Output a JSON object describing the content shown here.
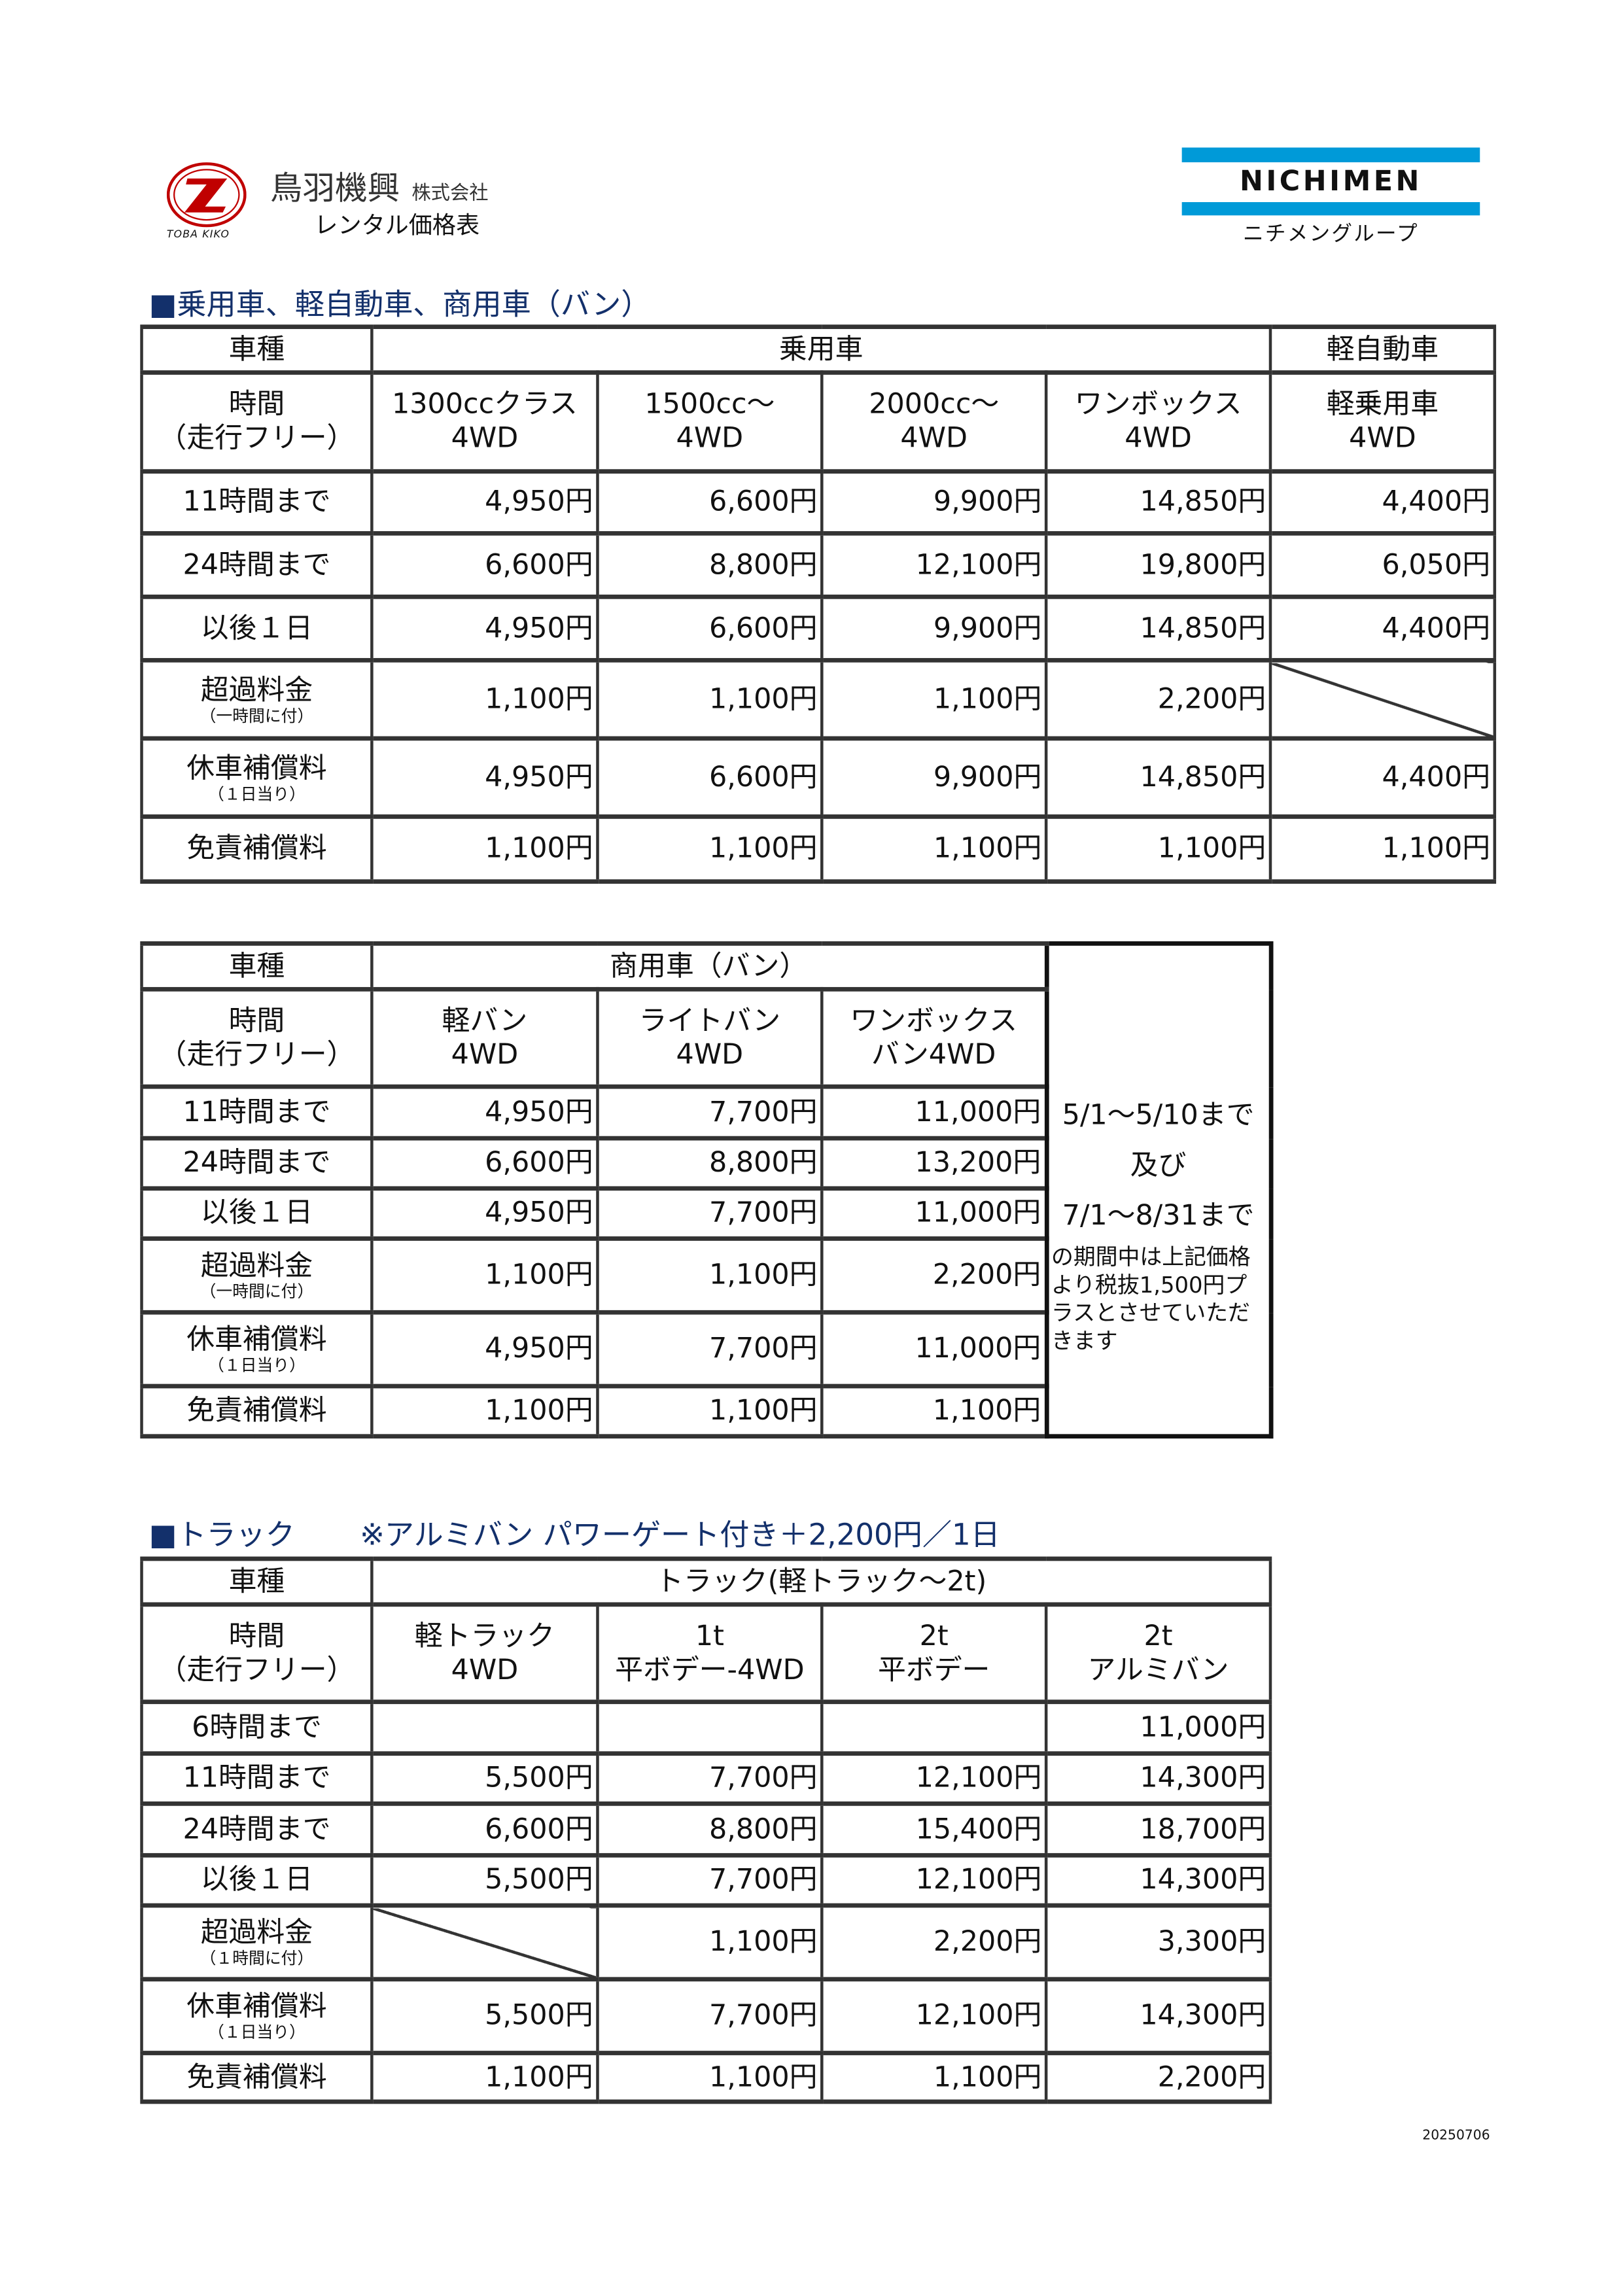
{
  "company": {
    "name": "鳥羽機興",
    "suffix": "株式会社",
    "subtitle": "レンタル価格表",
    "logo_text": "TOBA KIKO"
  },
  "partner": {
    "name": "NICHIMEN",
    "group": "ニチメングループ"
  },
  "colors": {
    "heading": "#13306b",
    "partner_blue": "#009ad8",
    "logo_red": "#c00000",
    "border": "#333333"
  },
  "sections": [
    {
      "title": "■乗用車、軽自動車、商用車（バン）"
    },
    {
      "title": "■トラック",
      "note": "※アルミバン パワーゲート付き＋2,200円／1日"
    }
  ],
  "tables": [
    {
      "group_header": [
        "車種",
        "乗用車",
        "軽自動車"
      ],
      "col_header": [
        [
          "時間",
          "（走行フリー）"
        ],
        [
          "1300ccクラス",
          "4WD"
        ],
        [
          "1500cc～",
          "4WD"
        ],
        [
          "2000cc～",
          "4WD"
        ],
        [
          "ワンボックス",
          "4WD"
        ],
        [
          "軽乗用車",
          "4WD"
        ]
      ],
      "rows": [
        {
          "label": "11時間まで",
          "values": [
            "4,950円",
            "6,600円",
            "9,900円",
            "14,850円",
            "4,400円"
          ]
        },
        {
          "label": "24時間まで",
          "values": [
            "6,600円",
            "8,800円",
            "12,100円",
            "19,800円",
            "6,050円"
          ]
        },
        {
          "label": "以後１日",
          "values": [
            "4,950円",
            "6,600円",
            "9,900円",
            "14,850円",
            "4,400円"
          ]
        },
        {
          "label": "超過料金",
          "sub": "（一時間に付）",
          "values": [
            "1,100円",
            "1,100円",
            "1,100円",
            "2,200円",
            null
          ]
        },
        {
          "label": "休車補償料",
          "sub": "（１日当り）",
          "values": [
            "4,950円",
            "6,600円",
            "9,900円",
            "14,850円",
            "4,400円"
          ]
        },
        {
          "label": "免責補償料",
          "values": [
            "1,100円",
            "1,100円",
            "1,100円",
            "1,100円",
            "1,100円"
          ]
        }
      ]
    },
    {
      "group_header": [
        "車種",
        "商用車（バン）"
      ],
      "col_header": [
        [
          "時間",
          "（走行フリー）"
        ],
        [
          "軽バン",
          "4WD"
        ],
        [
          "ライトバン",
          "4WD"
        ],
        [
          "ワンボックス",
          "バン4WD"
        ]
      ],
      "rows": [
        {
          "label": "11時間まで",
          "values": [
            "4,950円",
            "7,700円",
            "11,000円"
          ]
        },
        {
          "label": "24時間まで",
          "values": [
            "6,600円",
            "8,800円",
            "13,200円"
          ]
        },
        {
          "label": "以後１日",
          "values": [
            "4,950円",
            "7,700円",
            "11,000円"
          ]
        },
        {
          "label": "超過料金",
          "sub": "（一時間に付）",
          "values": [
            "1,100円",
            "1,100円",
            "2,200円"
          ]
        },
        {
          "label": "休車補償料",
          "sub": "（１日当り）",
          "values": [
            "4,950円",
            "7,700円",
            "11,000円"
          ]
        },
        {
          "label": "免責補償料",
          "values": [
            "1,100円",
            "1,100円",
            "1,100円"
          ]
        }
      ],
      "note": {
        "lines": [
          "5/1～5/10まで",
          "及び",
          "7/1～8/31まで"
        ],
        "text": "の期間中は上記価格より税抜1,500円プラスとさせていただきます"
      }
    },
    {
      "group_header": [
        "車種",
        "トラック(軽トラック～2t)"
      ],
      "col_header": [
        [
          "時間",
          "（走行フリー）"
        ],
        [
          "軽トラック",
          "4WD"
        ],
        [
          "1t",
          "平ボデー-4WD"
        ],
        [
          "2t",
          "平ボデー"
        ],
        [
          "2t",
          "アルミバン"
        ]
      ],
      "rows": [
        {
          "label": "6時間まで",
          "values": [
            "",
            "",
            "",
            "11,000円"
          ]
        },
        {
          "label": "11時間まで",
          "values": [
            "5,500円",
            "7,700円",
            "12,100円",
            "14,300円"
          ]
        },
        {
          "label": "24時間まで",
          "values": [
            "6,600円",
            "8,800円",
            "15,400円",
            "18,700円"
          ]
        },
        {
          "label": "以後１日",
          "values": [
            "5,500円",
            "7,700円",
            "12,100円",
            "14,300円"
          ]
        },
        {
          "label": "超過料金",
          "sub": "（１時間に付）",
          "values": [
            null,
            "1,100円",
            "2,200円",
            "3,300円"
          ]
        },
        {
          "label": "休車補償料",
          "sub": "（１日当り）",
          "values": [
            "5,500円",
            "7,700円",
            "12,100円",
            "14,300円"
          ]
        },
        {
          "label": "免責補償料",
          "values": [
            "1,100円",
            "1,100円",
            "1,100円",
            "2,200円"
          ]
        }
      ]
    }
  ],
  "footer_code": "20250706"
}
